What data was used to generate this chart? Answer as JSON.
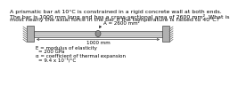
{
  "title_line1": "A prismatic bar at 10°C is constrained in a rigid concrete wall at both ends.",
  "title_line2": "The bar is 1000 mm long and has a cross-sectional area of 2600 mm². What is",
  "title_line3": "most nearly the axial force in the bar if the temperature is raised to 40°C?",
  "area_label": "A = 2600 mm²",
  "length_label": "1000 mm",
  "e_label": "E = modulus of elasticity",
  "e_value": "= 200 GPa",
  "alpha_label": "α = coefficient of thermal expansion",
  "alpha_value": "= 9.4 x 10⁻⁶/°C",
  "bar_fill": "#d0d0d0",
  "wall_fill": "#b0b0b0",
  "hatch_color": "#666666",
  "line_color": "#444444",
  "text_color": "#000000",
  "bg_color": "#ffffff",
  "font_size_title": 4.5,
  "font_size_diagram": 4.0,
  "font_size_props": 4.0
}
